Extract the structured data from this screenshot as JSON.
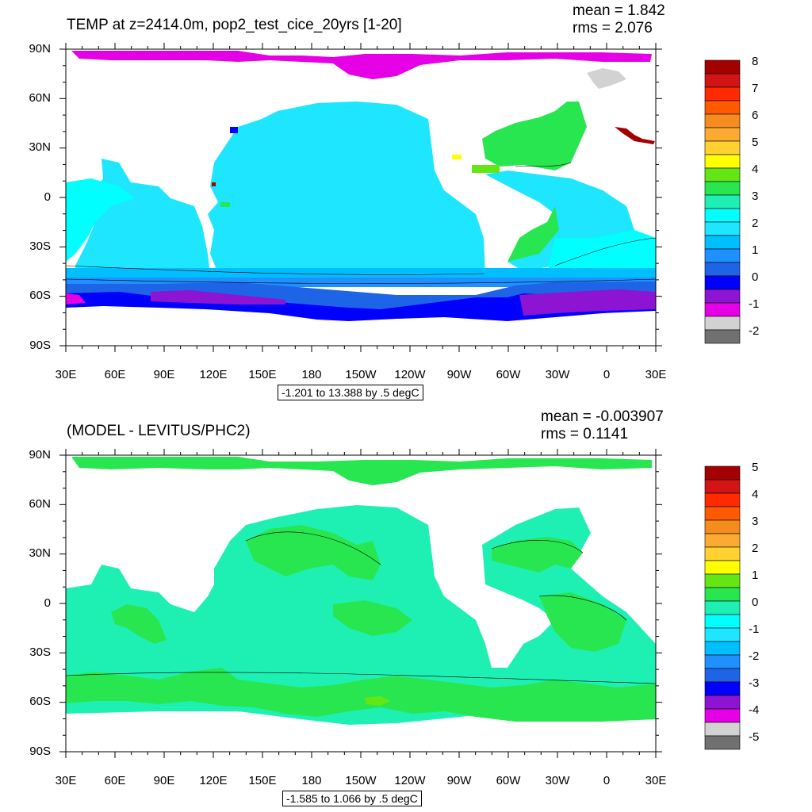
{
  "panels": [
    {
      "title": "TEMP at z=2414.0m, pop2_test_cice_20yrs [1-20]",
      "mean_text": "mean = 1.842",
      "rms_text": "rms = 2.076",
      "info": "-1.201 to 13.388 by .5 degC",
      "lat_labels": [
        "90N",
        "60N",
        "30N",
        "0",
        "30S",
        "60S",
        "90S"
      ],
      "lon_labels": [
        "30E",
        "60E",
        "90E",
        "120E",
        "150E",
        "180",
        "150W",
        "120W",
        "90W",
        "60W",
        "30W",
        "0",
        "30E"
      ],
      "colorbar_labels": [
        "8",
        "7",
        "6",
        "5",
        "4",
        "3",
        "2",
        "1",
        "0",
        "-1",
        "-2"
      ],
      "colorbar_colors": [
        "#a50000",
        "#d21414",
        "#ff2a00",
        "#ff5a00",
        "#f58c1e",
        "#fbaa32",
        "#ffd232",
        "#ffff00",
        "#64e614",
        "#28e650",
        "#1ef0b4",
        "#00ffff",
        "#1ee6ff",
        "#00bfff",
        "#1e90ff",
        "#1e64e6",
        "#0000ff",
        "#8c14d2",
        "#e600e6",
        "#d2d2d2",
        "#707070"
      ],
      "dominant_colors": {
        "ocean": "#1ee6ff",
        "deep": "#00bfff",
        "south": "#1e64e6",
        "polar": "#0000ff",
        "ice": "#8c14d2",
        "arctic": "#e600e6",
        "atlantic": "#28e650"
      }
    },
    {
      "title": "(MODEL - LEVITUS/PHC2)",
      "mean_text": "mean = -0.003907",
      "rms_text": "rms = 0.1141",
      "info": "-1.585 to 1.066 by .5 degC",
      "lat_labels": [
        "90N",
        "60N",
        "30N",
        "0",
        "30S",
        "60S",
        "90S"
      ],
      "lon_labels": [
        "30E",
        "60E",
        "90E",
        "120E",
        "150E",
        "180",
        "150W",
        "120W",
        "90W",
        "60W",
        "30W",
        "0",
        "30E"
      ],
      "colorbar_labels": [
        "5",
        "4",
        "3",
        "2",
        "1",
        "0",
        "-1",
        "-2",
        "-3",
        "-4",
        "-5"
      ],
      "colorbar_colors": [
        "#a50000",
        "#d21414",
        "#ff2a00",
        "#ff5a00",
        "#f58c1e",
        "#fbaa32",
        "#ffd232",
        "#ffff00",
        "#64e614",
        "#28e650",
        "#1ef0b4",
        "#00ffff",
        "#1ee6ff",
        "#00bfff",
        "#1e90ff",
        "#1e64e6",
        "#0000ff",
        "#8c14d2",
        "#e600e6",
        "#d2d2d2",
        "#707070"
      ],
      "dominant_colors": {
        "ocean": "#1ef0b4",
        "positive": "#28e650",
        "strong": "#64e614"
      }
    }
  ]
}
